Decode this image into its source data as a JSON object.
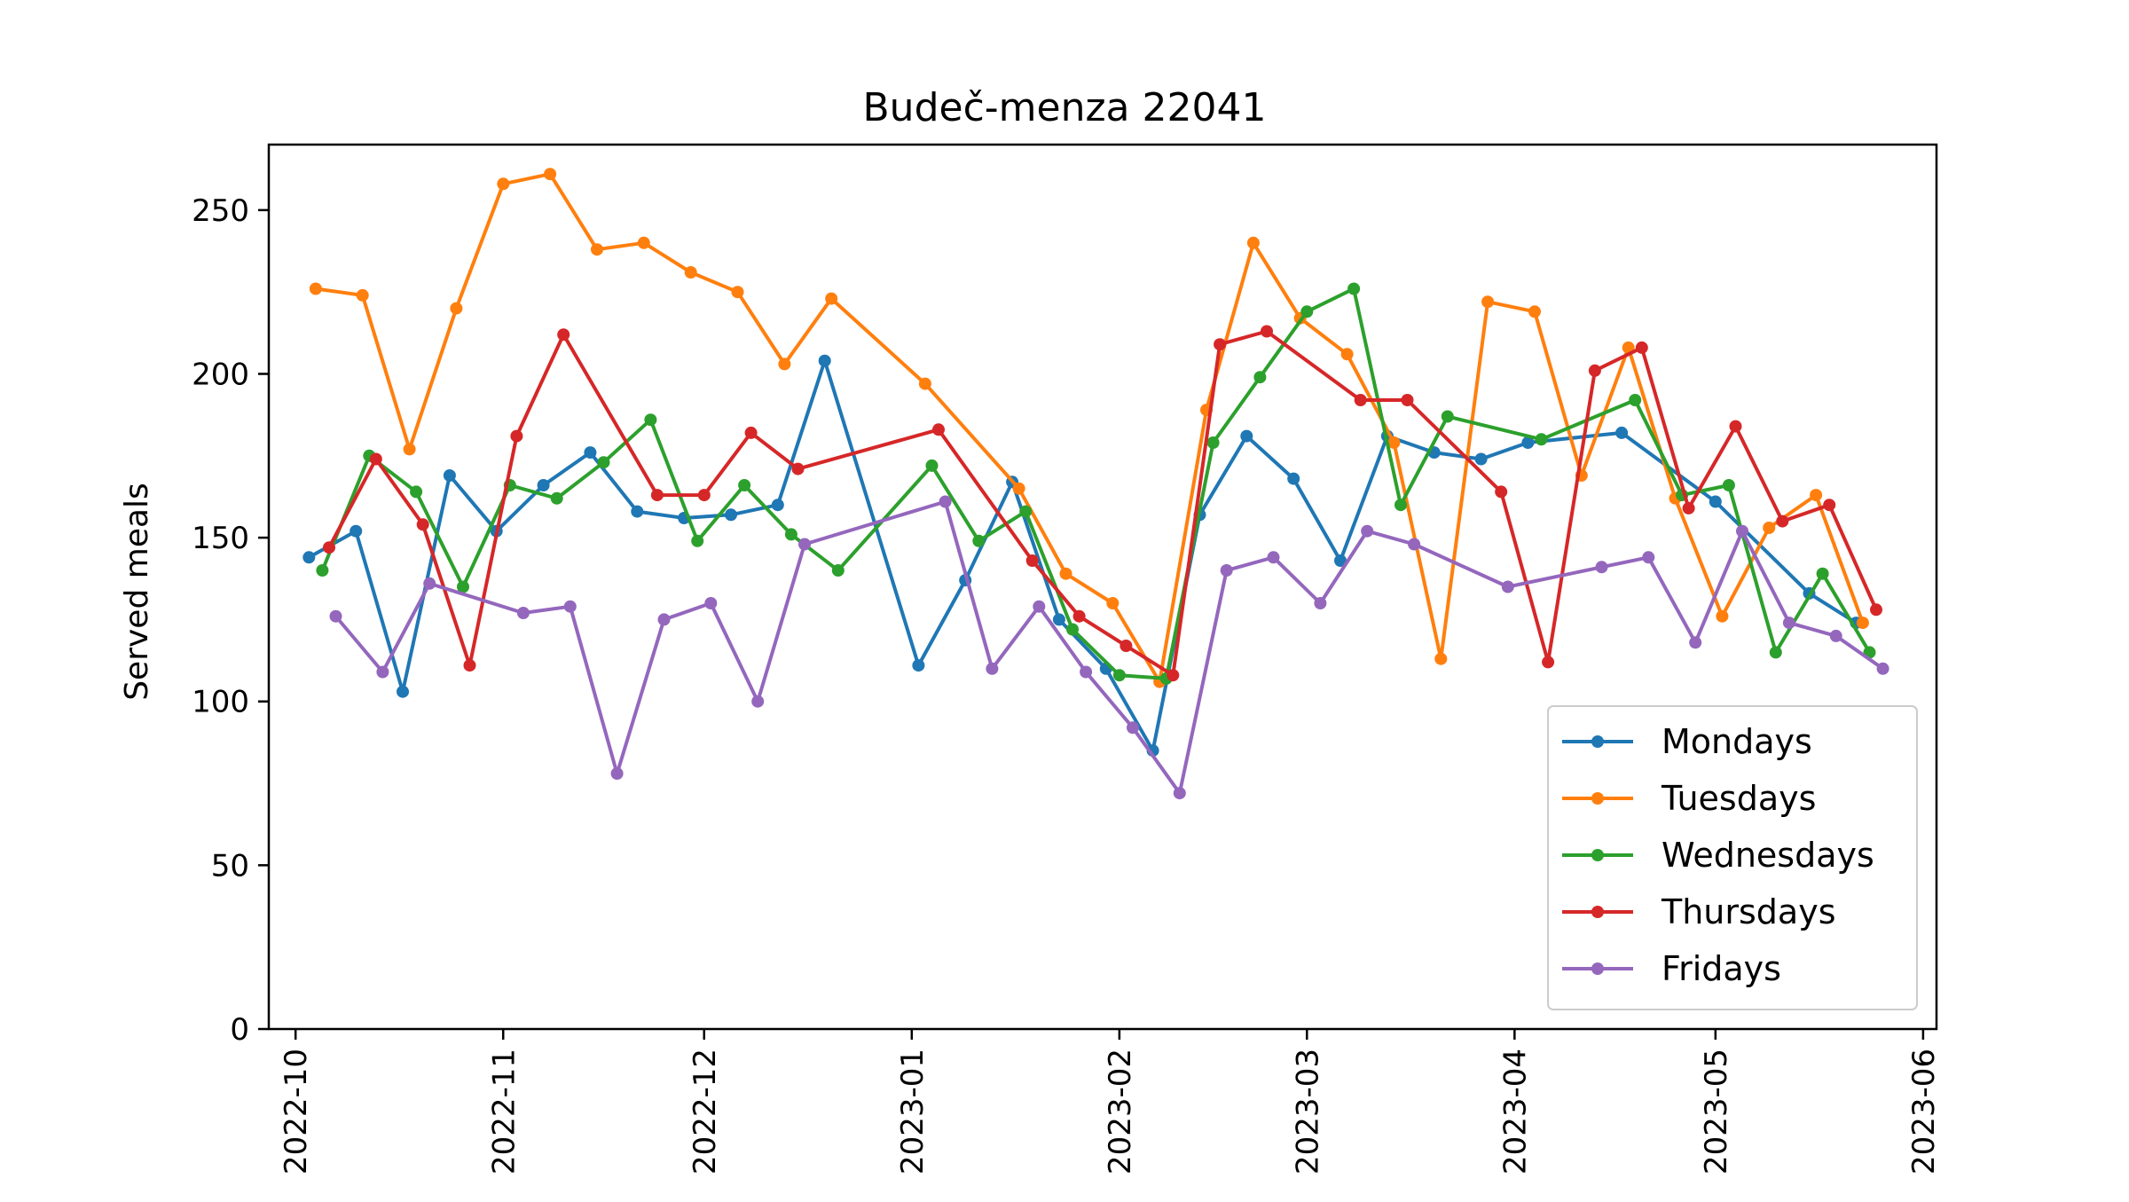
{
  "chart_data": {
    "type": "line",
    "title": "Budeč-menza 22041",
    "xlabel": "",
    "ylabel": "Served meals",
    "ylim": [
      0,
      270
    ],
    "xlim": [
      "2022-09-27",
      "2023-06-03"
    ],
    "yticks": [
      0,
      50,
      100,
      150,
      200,
      250
    ],
    "xticks": [
      "2022-10-01",
      "2022-11-01",
      "2022-12-01",
      "2023-01-01",
      "2023-02-01",
      "2023-03-01",
      "2023-04-01",
      "2023-05-01",
      "2023-06-01"
    ],
    "xtick_labels": [
      "2022-10",
      "2022-11",
      "2022-12",
      "2023-01",
      "2023-02",
      "2023-03",
      "2023-04",
      "2023-05",
      "2023-06"
    ],
    "grid": false,
    "legend_position": "lower-right",
    "series": [
      {
        "name": "Mondays",
        "color": "#1f77b4",
        "x": [
          "2022-10-03",
          "2022-10-10",
          "2022-10-17",
          "2022-10-24",
          "2022-10-31",
          "2022-11-07",
          "2022-11-14",
          "2022-11-21",
          "2022-11-28",
          "2022-12-05",
          "2022-12-12",
          "2022-12-19",
          "2023-01-02",
          "2023-01-09",
          "2023-01-16",
          "2023-01-23",
          "2023-01-30",
          "2023-02-06",
          "2023-02-13",
          "2023-02-20",
          "2023-02-27",
          "2023-03-06",
          "2023-03-13",
          "2023-03-20",
          "2023-03-27",
          "2023-04-03",
          "2023-04-17",
          "2023-05-01",
          "2023-05-15",
          "2023-05-22"
        ],
        "y": [
          144,
          152,
          103,
          169,
          152,
          166,
          176,
          158,
          156,
          157,
          160,
          204,
          111,
          137,
          167,
          125,
          110,
          85,
          157,
          181,
          168,
          143,
          181,
          176,
          174,
          179,
          182,
          161,
          133,
          124
        ]
      },
      {
        "name": "Tuesdays",
        "color": "#ff7f0e",
        "x": [
          "2022-10-04",
          "2022-10-11",
          "2022-10-18",
          "2022-10-25",
          "2022-11-01",
          "2022-11-08",
          "2022-11-15",
          "2022-11-22",
          "2022-11-29",
          "2022-12-06",
          "2022-12-13",
          "2022-12-20",
          "2023-01-03",
          "2023-01-17",
          "2023-01-24",
          "2023-01-31",
          "2023-02-07",
          "2023-02-14",
          "2023-02-21",
          "2023-02-28",
          "2023-03-07",
          "2023-03-14",
          "2023-03-21",
          "2023-03-28",
          "2023-04-04",
          "2023-04-11",
          "2023-04-18",
          "2023-04-25",
          "2023-05-02",
          "2023-05-09",
          "2023-05-16",
          "2023-05-23"
        ],
        "y": [
          226,
          224,
          177,
          220,
          258,
          261,
          238,
          240,
          231,
          225,
          203,
          223,
          197,
          165,
          139,
          130,
          106,
          189,
          240,
          217,
          206,
          179,
          113,
          222,
          219,
          169,
          208,
          162,
          126,
          153,
          163,
          124
        ]
      },
      {
        "name": "Wednesdays",
        "color": "#2ca02c",
        "x": [
          "2022-10-05",
          "2022-10-12",
          "2022-10-19",
          "2022-10-26",
          "2022-11-02",
          "2022-11-09",
          "2022-11-16",
          "2022-11-23",
          "2022-11-30",
          "2022-12-07",
          "2022-12-14",
          "2022-12-21",
          "2023-01-04",
          "2023-01-11",
          "2023-01-18",
          "2023-01-25",
          "2023-02-01",
          "2023-02-08",
          "2023-02-15",
          "2023-02-22",
          "2023-03-01",
          "2023-03-08",
          "2023-03-15",
          "2023-03-22",
          "2023-04-05",
          "2023-04-19",
          "2023-04-26",
          "2023-05-03",
          "2023-05-10",
          "2023-05-17",
          "2023-05-24"
        ],
        "y": [
          140,
          175,
          164,
          135,
          166,
          162,
          173,
          186,
          149,
          166,
          151,
          140,
          172,
          149,
          158,
          122,
          108,
          107,
          179,
          199,
          219,
          226,
          160,
          187,
          180,
          192,
          163,
          166,
          115,
          139,
          115
        ]
      },
      {
        "name": "Thursdays",
        "color": "#d62728",
        "x": [
          "2022-10-06",
          "2022-10-13",
          "2022-10-20",
          "2022-10-27",
          "2022-11-03",
          "2022-11-10",
          "2022-11-24",
          "2022-12-01",
          "2022-12-08",
          "2022-12-15",
          "2023-01-05",
          "2023-01-19",
          "2023-01-26",
          "2023-02-02",
          "2023-02-09",
          "2023-02-16",
          "2023-02-23",
          "2023-03-09",
          "2023-03-16",
          "2023-03-30",
          "2023-04-06",
          "2023-04-13",
          "2023-04-20",
          "2023-04-27",
          "2023-05-04",
          "2023-05-11",
          "2023-05-18",
          "2023-05-25"
        ],
        "y": [
          147,
          174,
          154,
          111,
          181,
          212,
          163,
          163,
          182,
          171,
          183,
          143,
          126,
          117,
          108,
          209,
          213,
          192,
          192,
          164,
          112,
          201,
          208,
          159,
          184,
          155,
          160,
          128
        ]
      },
      {
        "name": "Fridays",
        "color": "#9467bd",
        "x": [
          "2022-10-07",
          "2022-10-14",
          "2022-10-21",
          "2022-11-04",
          "2022-11-11",
          "2022-11-18",
          "2022-11-25",
          "2022-12-02",
          "2022-12-09",
          "2022-12-16",
          "2023-01-06",
          "2023-01-13",
          "2023-01-20",
          "2023-01-27",
          "2023-02-03",
          "2023-02-10",
          "2023-02-17",
          "2023-02-24",
          "2023-03-03",
          "2023-03-10",
          "2023-03-17",
          "2023-03-31",
          "2023-04-14",
          "2023-04-21",
          "2023-04-28",
          "2023-05-05",
          "2023-05-12",
          "2023-05-19",
          "2023-05-26"
        ],
        "y": [
          126,
          109,
          136,
          127,
          129,
          78,
          125,
          130,
          100,
          148,
          161,
          110,
          129,
          109,
          92,
          72,
          140,
          144,
          130,
          152,
          148,
          135,
          141,
          144,
          118,
          152,
          124,
          120,
          110
        ]
      }
    ]
  }
}
